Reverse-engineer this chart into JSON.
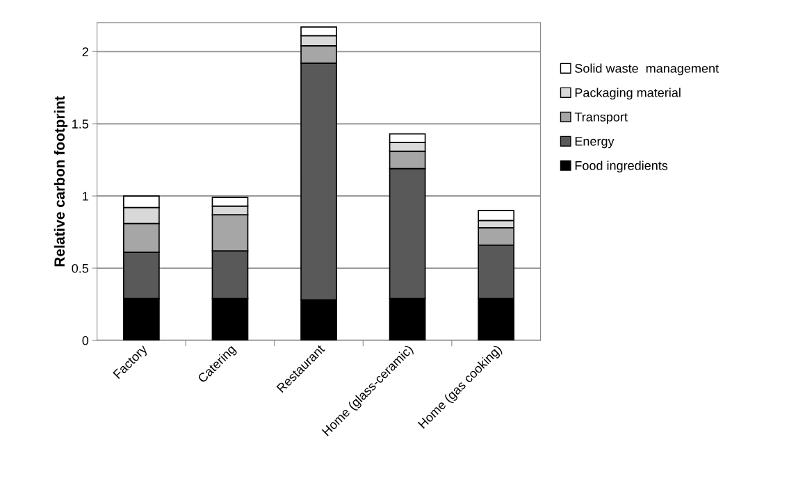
{
  "chart_data": {
    "type": "bar",
    "stacked": true,
    "ylabel": "Relative carbon footprint",
    "categories": [
      "Factory",
      "Catering",
      "Restaurant",
      "Home (glass-ceramic)",
      "Home (gas cooking)"
    ],
    "series": [
      {
        "name": "Food ingredients",
        "color": "#000000",
        "values": [
          0.29,
          0.29,
          0.28,
          0.29,
          0.29
        ]
      },
      {
        "name": "Energy",
        "color": "#595959",
        "values": [
          0.32,
          0.33,
          1.64,
          0.9,
          0.37
        ]
      },
      {
        "name": "Transport",
        "color": "#a6a6a6",
        "values": [
          0.2,
          0.25,
          0.12,
          0.12,
          0.12
        ]
      },
      {
        "name": "Packaging material",
        "color": "#d9d9d9",
        "values": [
          0.11,
          0.06,
          0.07,
          0.06,
          0.05
        ]
      },
      {
        "name": "Solid waste  management",
        "color": "#ffffff",
        "values": [
          0.08,
          0.06,
          0.06,
          0.06,
          0.07
        ]
      }
    ],
    "ylim": [
      0,
      2.2
    ],
    "yticks": [
      0,
      0.5,
      1,
      1.5,
      2
    ],
    "grid": "y",
    "legend": "right"
  }
}
